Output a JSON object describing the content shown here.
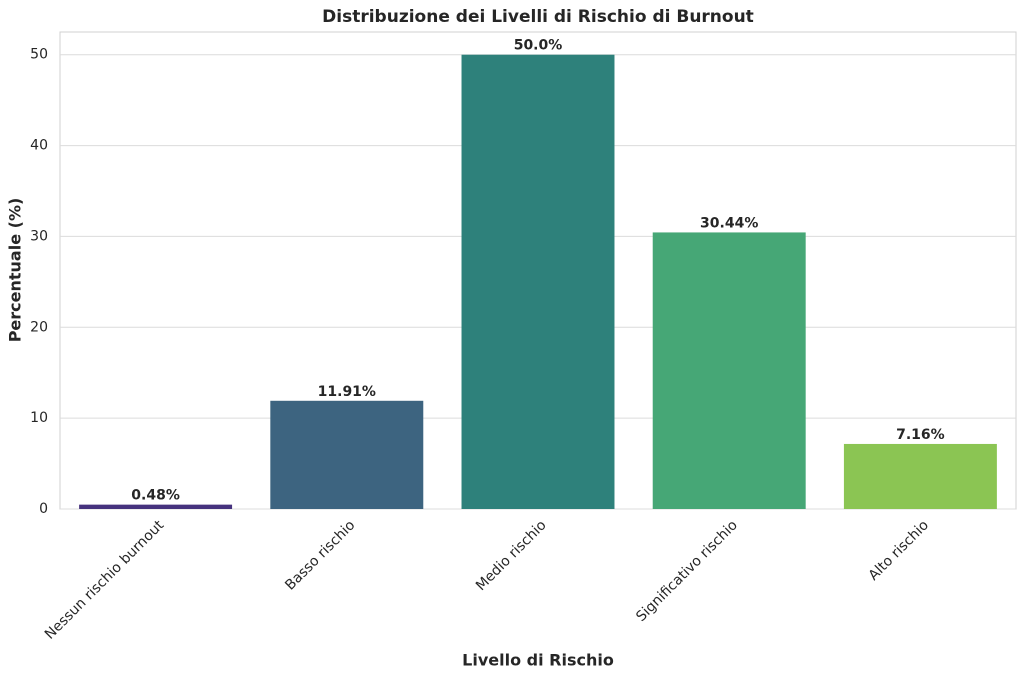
{
  "chart_data": {
    "type": "bar",
    "title": "Distribuzione dei Livelli di Rischio di Burnout",
    "xlabel": "Livello di Rischio",
    "ylabel": "Percentuale (%)",
    "categories": [
      "Nessun rischio burnout",
      "Basso rischio",
      "Medio rischio",
      "Significativo rischio",
      "Alto rischio"
    ],
    "values": [
      0.48,
      11.91,
      50.0,
      30.44,
      7.16
    ],
    "value_labels": [
      "0.48%",
      "11.91%",
      "50.0%",
      "30.44%",
      "7.16%"
    ],
    "colors": [
      "#46327e",
      "#3d6480",
      "#2e817b",
      "#46a776",
      "#8bc553"
    ],
    "ylim": [
      0,
      52.5
    ],
    "yticks": [
      0,
      10,
      20,
      30,
      40,
      50
    ],
    "grid": true
  }
}
